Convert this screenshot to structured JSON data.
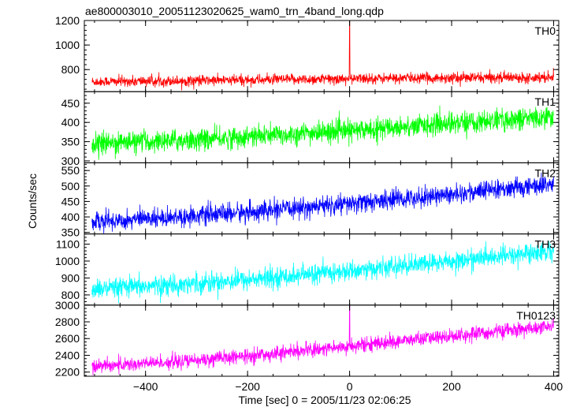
{
  "chart_data": {
    "type": "line",
    "title": "ae800003010_20051123020625_wam0_trn_4band_long.qdp",
    "xlabel": "Time [sec] 0 = 2005/11/23 02:06:25",
    "ylabel": "Counts/sec",
    "xlim": [
      -520,
      410
    ],
    "xticks": [
      -400,
      -200,
      0,
      200,
      400
    ],
    "panels": [
      {
        "name": "TH0",
        "color": "#ff0000",
        "ylim": [
          620,
          1200
        ],
        "yticks": [
          800,
          1000,
          1200
        ],
        "series": {
          "start_mean": 700,
          "end_mean": 740,
          "noise": 28,
          "spike": {
            "x": 0,
            "y": 1200
          },
          "x": [
            -500,
            -400,
            -300,
            -200,
            -100,
            0,
            100,
            200,
            300,
            400
          ],
          "trend": [
            700,
            705,
            710,
            715,
            720,
            725,
            730,
            732,
            735,
            740
          ]
        }
      },
      {
        "name": "TH1",
        "color": "#00ff00",
        "ylim": [
          295,
          480
        ],
        "yticks": [
          300,
          350,
          400,
          450
        ],
        "series": {
          "start_mean": 345,
          "end_mean": 415,
          "noise": 18,
          "x": [
            -500,
            -400,
            -300,
            -200,
            -100,
            0,
            100,
            200,
            300,
            400
          ],
          "trend": [
            345,
            350,
            355,
            362,
            370,
            378,
            388,
            398,
            406,
            415
          ]
        }
      },
      {
        "name": "TH2",
        "color": "#0000ff",
        "ylim": [
          345,
          575
        ],
        "yticks": [
          350,
          400,
          450,
          500,
          550
        ],
        "series": {
          "start_mean": 385,
          "end_mean": 505,
          "noise": 20,
          "x": [
            -500,
            -400,
            -300,
            -200,
            -100,
            0,
            100,
            200,
            300,
            400
          ],
          "trend": [
            385,
            395,
            405,
            415,
            428,
            442,
            458,
            474,
            490,
            505
          ]
        }
      },
      {
        "name": "TH3",
        "color": "#00ffff",
        "ylim": [
          740,
          1160
        ],
        "yticks": [
          800,
          900,
          1000,
          1100
        ],
        "series": {
          "start_mean": 830,
          "end_mean": 1060,
          "noise": 38,
          "x": [
            -500,
            -400,
            -300,
            -200,
            -100,
            0,
            100,
            200,
            300,
            400
          ],
          "trend": [
            830,
            850,
            870,
            890,
            915,
            940,
            970,
            1000,
            1030,
            1060
          ]
        }
      },
      {
        "name": "TH0123",
        "color": "#ff00ff",
        "ylim": [
          2150,
          3000
        ],
        "yticks": [
          2200,
          2400,
          2600,
          2800,
          3000
        ],
        "series": {
          "start_mean": 2270,
          "end_mean": 2740,
          "noise": 55,
          "spike": {
            "x": 0,
            "y": 3000
          },
          "x": [
            -500,
            -400,
            -300,
            -200,
            -100,
            0,
            100,
            200,
            300,
            400
          ],
          "trend": [
            2270,
            2300,
            2340,
            2390,
            2450,
            2510,
            2570,
            2630,
            2690,
            2740
          ]
        }
      }
    ],
    "grid": false,
    "legend": "none"
  }
}
